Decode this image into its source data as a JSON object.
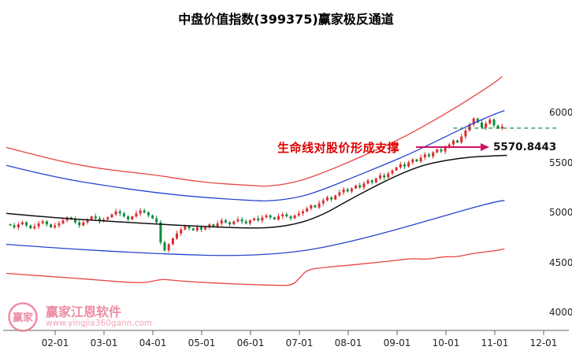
{
  "title": "中盘价值指数(399375)赢家极反通道",
  "annotation": {
    "text": "生命线对股价形成支撑",
    "value": "5570.8443",
    "text_color": "#e00000",
    "arrow_color": "#cf1167"
  },
  "watermark": {
    "brand": "赢家江恩软件",
    "url": "www.yingjia360gann.com",
    "logo_char": "赢家",
    "color": "#e97a93"
  },
  "axes": {
    "y_ticks": [
      6000,
      5500,
      5000,
      4500,
      4000
    ],
    "x_labels": [
      "02-01",
      "03-01",
      "04-01",
      "05-01",
      "06-01",
      "07-01",
      "08-01",
      "09-01",
      "10-01",
      "11-01",
      "12-01"
    ]
  },
  "colors": {
    "up_candle": "#dd2c2c",
    "down_candle": "#0e8a3e",
    "rail_red": "#e84444",
    "rail_blue": "#2743cf",
    "lifeline_black": "#111111",
    "dashed_level_green": "#1c8c46",
    "axis": "#666666",
    "axis_text": "#222222"
  },
  "chart_data": {
    "type": "candlestick",
    "title": "中盘价值指数(399375)赢家极反通道",
    "grid": false,
    "ylim": [
      3800,
      6800
    ],
    "y_ticks": [
      6000,
      5500,
      5000,
      4500,
      4000
    ],
    "x_tick_labels": [
      "02-01",
      "03-01",
      "04-01",
      "05-01",
      "06-01",
      "07-01",
      "08-01",
      "09-01",
      "10-01",
      "11-01",
      "12-01"
    ],
    "candles": {
      "first_open": 4880,
      "first_month": 0.08,
      "last_month": 10.15,
      "closes": [
        4870,
        4850,
        4880,
        4900,
        4870,
        4840,
        4860,
        4890,
        4910,
        4880,
        4850,
        4870,
        4890,
        4920,
        4950,
        4930,
        4900,
        4870,
        4900,
        4930,
        4960,
        4940,
        4910,
        4930,
        4950,
        4980,
        5010,
        4990,
        4960,
        4930,
        4960,
        4990,
        5020,
        5000,
        4970,
        4940,
        4900,
        4700,
        4620,
        4680,
        4740,
        4790,
        4830,
        4860,
        4840,
        4820,
        4850,
        4830,
        4850,
        4880,
        4860,
        4890,
        4920,
        4900,
        4880,
        4910,
        4930,
        4910,
        4890,
        4920,
        4940,
        4920,
        4950,
        4970,
        4950,
        4930,
        4960,
        4980,
        4960,
        4940,
        4970,
        4990,
        5010,
        5040,
        5070,
        5050,
        5090,
        5120,
        5150,
        5130,
        5170,
        5200,
        5230,
        5210,
        5240,
        5270,
        5250,
        5290,
        5320,
        5300,
        5340,
        5370,
        5350,
        5390,
        5420,
        5450,
        5480,
        5460,
        5500,
        5530,
        5510,
        5550,
        5580,
        5560,
        5600,
        5630,
        5610,
        5650,
        5680,
        5720,
        5700,
        5760,
        5820,
        5880,
        5940,
        5900,
        5850,
        5890,
        5930,
        5870,
        5840,
        5860
      ]
    },
    "channel_lines": [
      {
        "name": "upper_outer_rail_red",
        "color": "#e84444",
        "width": 1.3,
        "points": [
          [
            0,
            5650
          ],
          [
            1,
            5520
          ],
          [
            2,
            5430
          ],
          [
            3,
            5380
          ],
          [
            4,
            5300
          ],
          [
            5,
            5270
          ],
          [
            5.4,
            5258
          ],
          [
            6,
            5310
          ],
          [
            6.5,
            5400
          ],
          [
            7,
            5500
          ],
          [
            7.5,
            5610
          ],
          [
            8,
            5720
          ],
          [
            8.5,
            5850
          ],
          [
            9,
            5990
          ],
          [
            9.5,
            6140
          ],
          [
            10,
            6300
          ],
          [
            10.15,
            6360
          ]
        ]
      },
      {
        "name": "upper_inner_rail_blue",
        "color": "#2743cf",
        "width": 1.3,
        "points": [
          [
            0,
            5470
          ],
          [
            1,
            5350
          ],
          [
            2,
            5270
          ],
          [
            3,
            5200
          ],
          [
            4,
            5150
          ],
          [
            5,
            5120
          ],
          [
            5.4,
            5112
          ],
          [
            6,
            5150
          ],
          [
            6.5,
            5230
          ],
          [
            7,
            5330
          ],
          [
            7.5,
            5430
          ],
          [
            8,
            5530
          ],
          [
            8.5,
            5640
          ],
          [
            9,
            5760
          ],
          [
            9.5,
            5880
          ],
          [
            10,
            5985
          ],
          [
            10.2,
            6020
          ]
        ]
      },
      {
        "name": "lifeline_black",
        "color": "#111111",
        "width": 1.5,
        "points": [
          [
            0,
            4990
          ],
          [
            1,
            4945
          ],
          [
            2,
            4915
          ],
          [
            3,
            4885
          ],
          [
            4,
            4858
          ],
          [
            5,
            4842
          ],
          [
            5.5,
            4850
          ],
          [
            6,
            4890
          ],
          [
            6.5,
            4980
          ],
          [
            7,
            5120
          ],
          [
            7.5,
            5250
          ],
          [
            8,
            5370
          ],
          [
            8.5,
            5470
          ],
          [
            9,
            5522
          ],
          [
            9.5,
            5555
          ],
          [
            10,
            5567
          ],
          [
            10.25,
            5571
          ]
        ]
      },
      {
        "name": "lower_inner_rail_blue",
        "color": "#2743cf",
        "width": 1.3,
        "points": [
          [
            0,
            4680
          ],
          [
            1,
            4645
          ],
          [
            2,
            4615
          ],
          [
            3,
            4590
          ],
          [
            3.5,
            4580
          ],
          [
            4,
            4572
          ],
          [
            4.5,
            4568
          ],
          [
            5,
            4572
          ],
          [
            5.5,
            4585
          ],
          [
            6,
            4610
          ],
          [
            6.5,
            4650
          ],
          [
            7,
            4705
          ],
          [
            7.5,
            4765
          ],
          [
            8,
            4830
          ],
          [
            8.5,
            4900
          ],
          [
            9,
            4970
          ],
          [
            9.5,
            5040
          ],
          [
            10,
            5105
          ],
          [
            10.2,
            5120
          ]
        ]
      },
      {
        "name": "lower_outer_rail_red",
        "color": "#e84444",
        "width": 1.3,
        "points": [
          [
            0,
            4390
          ],
          [
            0.5,
            4372
          ],
          [
            1,
            4355
          ],
          [
            1.5,
            4338
          ],
          [
            2,
            4318
          ],
          [
            2.5,
            4300
          ],
          [
            2.8,
            4295
          ],
          [
            3,
            4312
          ],
          [
            3.2,
            4332
          ],
          [
            3.5,
            4315
          ],
          [
            4,
            4300
          ],
          [
            4.5,
            4288
          ],
          [
            5,
            4278
          ],
          [
            5.5,
            4270
          ],
          [
            5.85,
            4268
          ],
          [
            6,
            4340
          ],
          [
            6.15,
            4425
          ],
          [
            6.5,
            4450
          ],
          [
            7,
            4470
          ],
          [
            7.5,
            4495
          ],
          [
            8,
            4520
          ],
          [
            8.3,
            4540
          ],
          [
            8.6,
            4528
          ],
          [
            9,
            4560
          ],
          [
            9.2,
            4552
          ],
          [
            9.5,
            4585
          ],
          [
            9.8,
            4605
          ],
          [
            10,
            4615
          ],
          [
            10.2,
            4635
          ]
        ]
      }
    ],
    "dashed_level": {
      "value": 5843,
      "from_month": 9.15,
      "color": "#1c8c46"
    },
    "lifeline_end_value": 5570.8443
  }
}
